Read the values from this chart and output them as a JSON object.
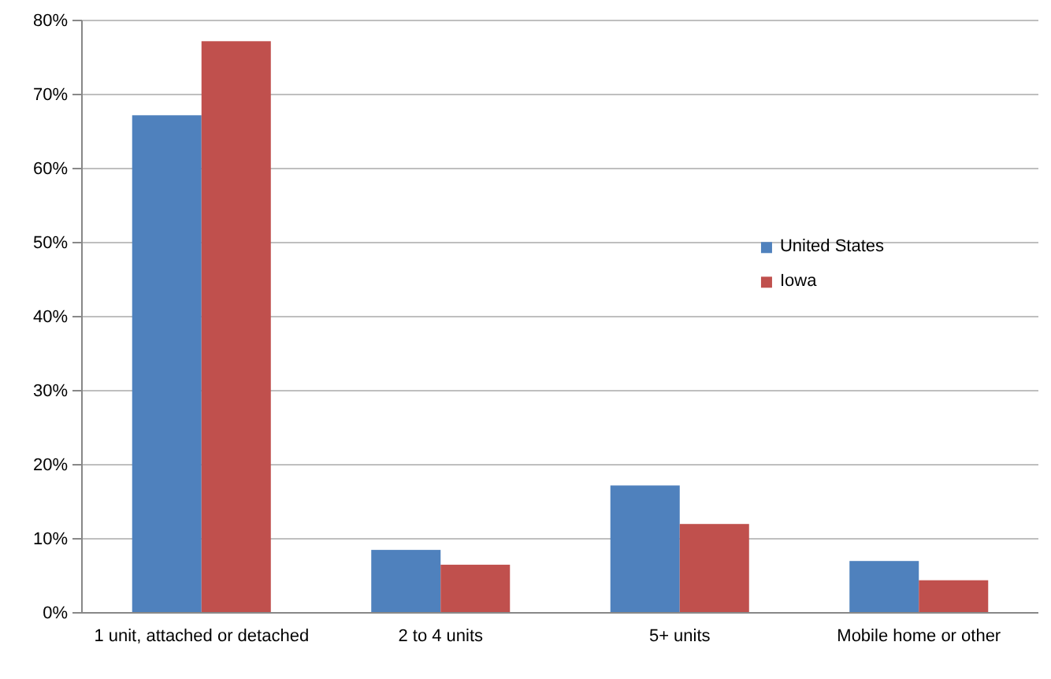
{
  "chart_data": {
    "type": "bar",
    "categories": [
      "1 unit, attached or detached",
      "2 to 4 units",
      "5+ units",
      "Mobile home or other"
    ],
    "series": [
      {
        "name": "United States",
        "color": "#4f81bd",
        "values": [
          67.2,
          8.5,
          17.2,
          7.0
        ]
      },
      {
        "name": "Iowa",
        "color": "#c0504d",
        "values": [
          77.2,
          6.5,
          12.0,
          4.4
        ]
      }
    ],
    "ylim": [
      0,
      80
    ],
    "yticks": [
      {
        "value": 0,
        "label": "0%"
      },
      {
        "value": 10,
        "label": "10%"
      },
      {
        "value": 20,
        "label": "20%"
      },
      {
        "value": 30,
        "label": "30%"
      },
      {
        "value": 40,
        "label": "40%"
      },
      {
        "value": 50,
        "label": "50%"
      },
      {
        "value": 60,
        "label": "60%"
      },
      {
        "value": 70,
        "label": "70%"
      },
      {
        "value": 80,
        "label": "80%"
      }
    ],
    "grid": "y",
    "legend": "right"
  }
}
